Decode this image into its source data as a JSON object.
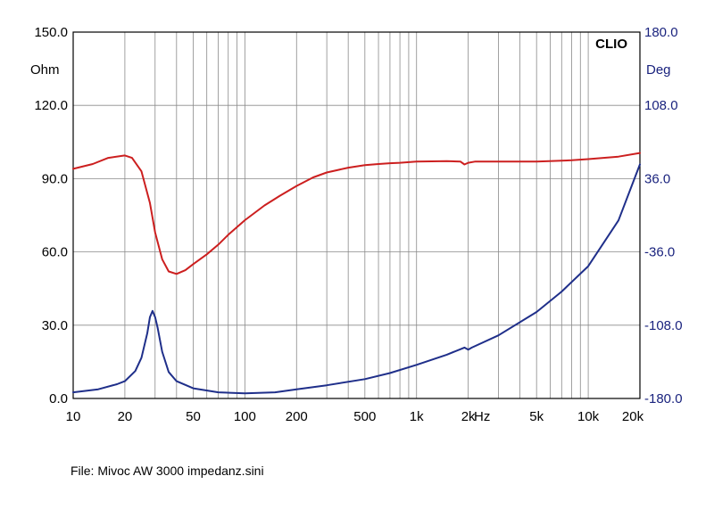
{
  "chart_data": {
    "type": "line",
    "badge": "CLIO",
    "left_unit": "Ohm",
    "right_unit": "Deg",
    "x_scale": "log",
    "xlim": [
      10,
      20000
    ],
    "ylim_left": [
      0,
      150
    ],
    "ylim_right": [
      -180,
      180
    ],
    "grid": true,
    "left_ticks": [
      "0.0",
      "30.0",
      "60.0",
      "90.0",
      "120.0",
      "150.0"
    ],
    "right_ticks": [
      "-180.0",
      "-108.0",
      "-36.0",
      "36.0",
      "108.0",
      "180.0"
    ],
    "x_ticks": [
      {
        "value": 10,
        "label": "10"
      },
      {
        "value": 20,
        "label": "20"
      },
      {
        "value": 50,
        "label": "50"
      },
      {
        "value": 100,
        "label": "100"
      },
      {
        "value": 200,
        "label": "200"
      },
      {
        "value": 500,
        "label": "500"
      },
      {
        "value": 1000,
        "label": "1k"
      },
      {
        "value": 2000,
        "label": "2k"
      },
      {
        "value": 5000,
        "label": "5k"
      },
      {
        "value": 10000,
        "label": "10k"
      },
      {
        "value": 20000,
        "label": "20k"
      }
    ],
    "x_unit": "Hz",
    "series": [
      {
        "color": "#cc1f1f",
        "axis": "left",
        "points": [
          [
            10,
            94
          ],
          [
            13,
            96
          ],
          [
            16,
            98.5
          ],
          [
            20,
            99.5
          ],
          [
            22,
            98.5
          ],
          [
            25,
            93
          ],
          [
            28,
            80
          ],
          [
            30,
            68
          ],
          [
            33,
            57
          ],
          [
            36,
            52
          ],
          [
            40,
            51
          ],
          [
            45,
            52.5
          ],
          [
            50,
            55
          ],
          [
            60,
            59
          ],
          [
            70,
            63
          ],
          [
            80,
            67
          ],
          [
            100,
            73
          ],
          [
            130,
            79
          ],
          [
            160,
            83
          ],
          [
            200,
            87
          ],
          [
            250,
            90.5
          ],
          [
            300,
            92.5
          ],
          [
            400,
            94.5
          ],
          [
            500,
            95.5
          ],
          [
            600,
            96
          ],
          [
            700,
            96.3
          ],
          [
            800,
            96.5
          ],
          [
            1000,
            97
          ],
          [
            1500,
            97.2
          ],
          [
            1800,
            97
          ],
          [
            1900,
            95.8
          ],
          [
            2000,
            96.5
          ],
          [
            2200,
            97
          ],
          [
            3000,
            97
          ],
          [
            5000,
            97
          ],
          [
            8000,
            97.5
          ],
          [
            10000,
            98
          ],
          [
            15000,
            99
          ],
          [
            20000,
            100.5
          ]
        ]
      },
      {
        "color": "#1f2f8a",
        "axis": "right",
        "points": [
          [
            10,
            -174
          ],
          [
            14,
            -171
          ],
          [
            18,
            -166
          ],
          [
            20,
            -163
          ],
          [
            23,
            -153
          ],
          [
            25,
            -140
          ],
          [
            27,
            -116
          ],
          [
            28,
            -100
          ],
          [
            29,
            -94
          ],
          [
            30,
            -100
          ],
          [
            31,
            -110
          ],
          [
            33,
            -134
          ],
          [
            36,
            -154
          ],
          [
            40,
            -163
          ],
          [
            50,
            -170
          ],
          [
            70,
            -174
          ],
          [
            100,
            -175
          ],
          [
            150,
            -174
          ],
          [
            200,
            -171
          ],
          [
            300,
            -167
          ],
          [
            500,
            -161
          ],
          [
            700,
            -155
          ],
          [
            1000,
            -147
          ],
          [
            1500,
            -137
          ],
          [
            1900,
            -130
          ],
          [
            2000,
            -132
          ],
          [
            2100,
            -130
          ],
          [
            3000,
            -118
          ],
          [
            5000,
            -95
          ],
          [
            7000,
            -75
          ],
          [
            10000,
            -50
          ],
          [
            15000,
            -5
          ],
          [
            20000,
            50
          ]
        ]
      }
    ]
  },
  "caption": "File: Mivoc AW 3000 impedanz.sini"
}
